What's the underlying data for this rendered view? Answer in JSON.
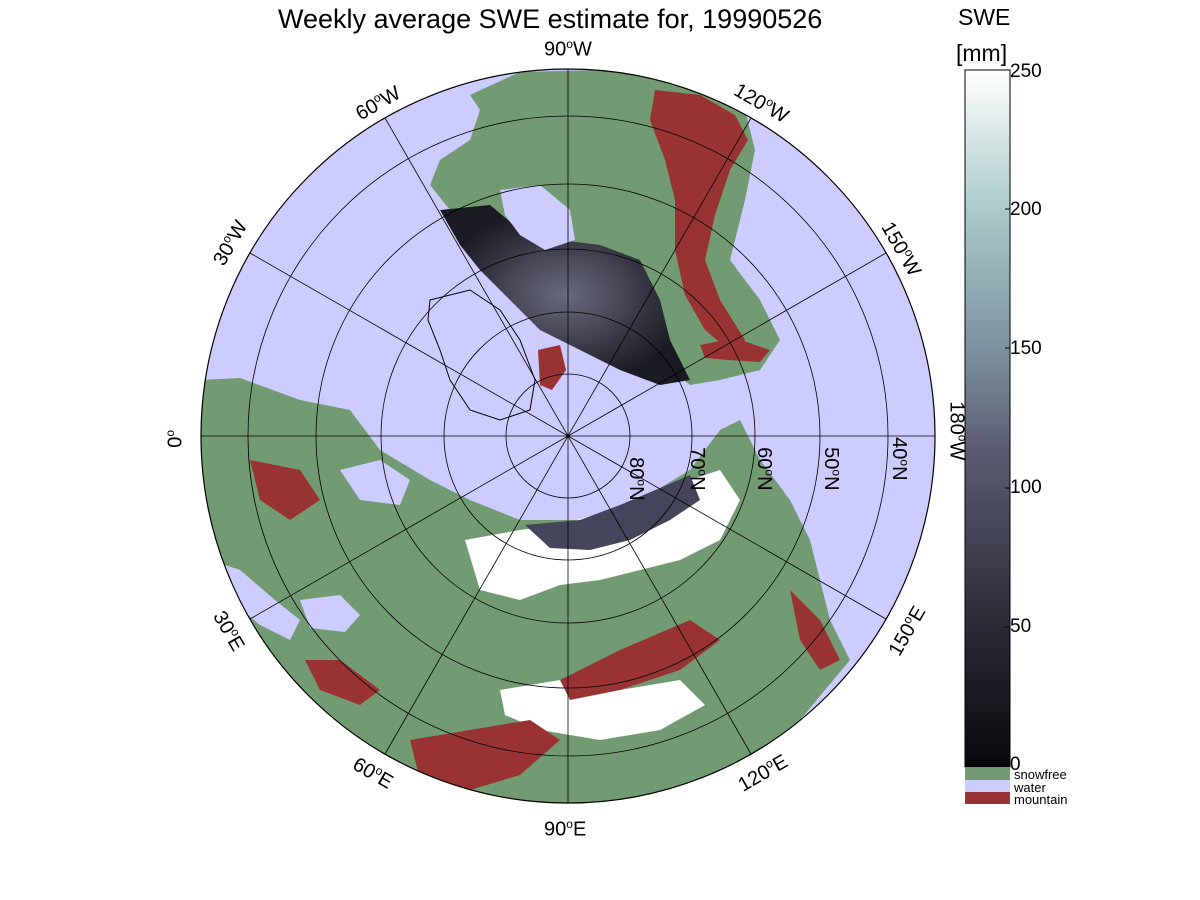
{
  "title": "Weekly average SWE estimate for, 19990526",
  "map": {
    "longitude_labels": [
      {
        "name": "lon-label-90w",
        "value": "90",
        "hemi": "W"
      },
      {
        "name": "lon-label-120w",
        "value": "120",
        "hemi": "W"
      },
      {
        "name": "lon-label-60w",
        "value": "60",
        "hemi": "W"
      },
      {
        "name": "lon-label-150w",
        "value": "150",
        "hemi": "W"
      },
      {
        "name": "lon-label-30w",
        "value": "30",
        "hemi": "W"
      },
      {
        "name": "lon-label-180w",
        "value": "180",
        "hemi": "W"
      },
      {
        "name": "lon-label-0",
        "value": "0",
        "hemi": ""
      },
      {
        "name": "lon-label-30e",
        "value": "30",
        "hemi": "E"
      },
      {
        "name": "lon-label-150e",
        "value": "150",
        "hemi": "E"
      },
      {
        "name": "lon-label-60e",
        "value": "60",
        "hemi": "E"
      },
      {
        "name": "lon-label-120e",
        "value": "120",
        "hemi": "E"
      },
      {
        "name": "lon-label-90e",
        "value": "90",
        "hemi": "E"
      }
    ],
    "latitude_labels": [
      {
        "name": "lat-label-80n",
        "value": "80",
        "hemi": "N"
      },
      {
        "name": "lat-label-70n",
        "value": "70",
        "hemi": "N"
      },
      {
        "name": "lat-label-60n",
        "value": "60",
        "hemi": "N"
      },
      {
        "name": "lat-label-50n",
        "value": "50",
        "hemi": "N"
      },
      {
        "name": "lat-label-40n",
        "value": "40",
        "hemi": "N"
      }
    ],
    "colors": {
      "water": "#ccccff",
      "snowfree": "#739b73",
      "mountain": "#993333",
      "snow_deep": "#2a2a36",
      "snow_white": "#ffffff",
      "grid": "#000000"
    }
  },
  "colorbar": {
    "title": "SWE",
    "unit": "[mm]",
    "ticks": [
      "250",
      "200",
      "150",
      "100",
      "50",
      "0"
    ],
    "range": [
      0,
      250
    ],
    "legend": [
      {
        "label": "snowfree",
        "color": "#739b73"
      },
      {
        "label": "water",
        "color": "#ccccff"
      },
      {
        "label": "mountain",
        "color": "#993333"
      }
    ]
  }
}
